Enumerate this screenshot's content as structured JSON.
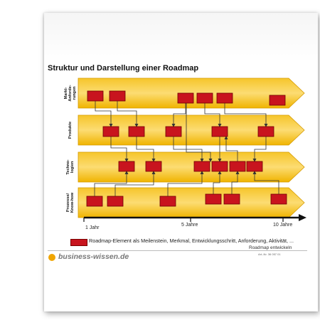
{
  "title": "Struktur und Darstellung einer Roadmap",
  "rows": [
    {
      "label_lines": [
        "Markt-",
        "Anforde-",
        "rungen"
      ]
    },
    {
      "label_lines": [
        "Produkte"
      ]
    },
    {
      "label_lines": [
        "Techno-",
        "logien"
      ]
    },
    {
      "label_lines": [
        "Prozesse/",
        "Know-how"
      ]
    }
  ],
  "axis": {
    "ticks": [
      "1 Jahr",
      "5 Jahre",
      "10 Jahre"
    ]
  },
  "legend": {
    "text": "Roadmap-Element als Meilenstein, Merkmal, Entwicklungsschritt, Anforderung, Aktivität, ..."
  },
  "footer": {
    "brand": "business-wissen.de",
    "doc_title": "Roadmap entwickeln",
    "doc_number": "Art.-Nr. 36 057 01"
  },
  "colors": {
    "band_light": "#fbd86a",
    "band_dark": "#f1b400",
    "element": "#c8141e",
    "element_border": "#6e0000",
    "connector": "#333333"
  }
}
